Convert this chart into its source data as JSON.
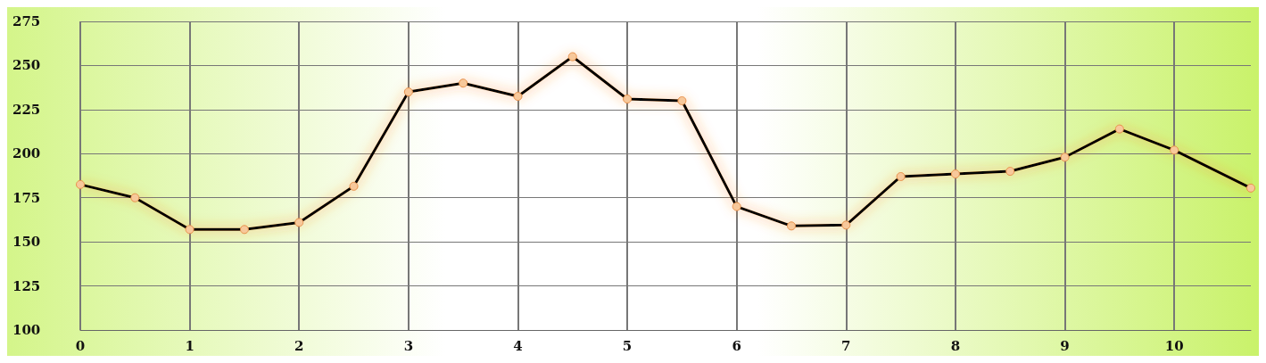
{
  "chart_data": {
    "type": "line",
    "x": [
      0,
      0.5,
      1,
      1.5,
      2,
      2.5,
      3,
      3.5,
      4,
      4.5,
      5,
      5.5,
      6,
      6.5,
      7,
      7.5,
      8,
      8.5,
      9,
      9.5,
      10,
      10.7
    ],
    "series": [
      {
        "color": "#000000",
        "values": [
          182.5,
          175,
          157,
          157,
          161,
          181.5,
          235,
          240,
          232.5,
          255,
          231,
          230,
          170,
          159,
          159.5,
          187,
          188.5,
          190,
          198,
          214,
          202,
          180.5
        ]
      }
    ],
    "xlim": [
      0,
      10.7
    ],
    "xticks": [
      0,
      1,
      2,
      3,
      4,
      5,
      6,
      7,
      8,
      9,
      10
    ],
    "ylim": [
      100,
      275
    ],
    "yticks": [
      100,
      125,
      150,
      175,
      200,
      225,
      250,
      275
    ],
    "grid": true,
    "marker": "circle",
    "line_style": "solid"
  }
}
